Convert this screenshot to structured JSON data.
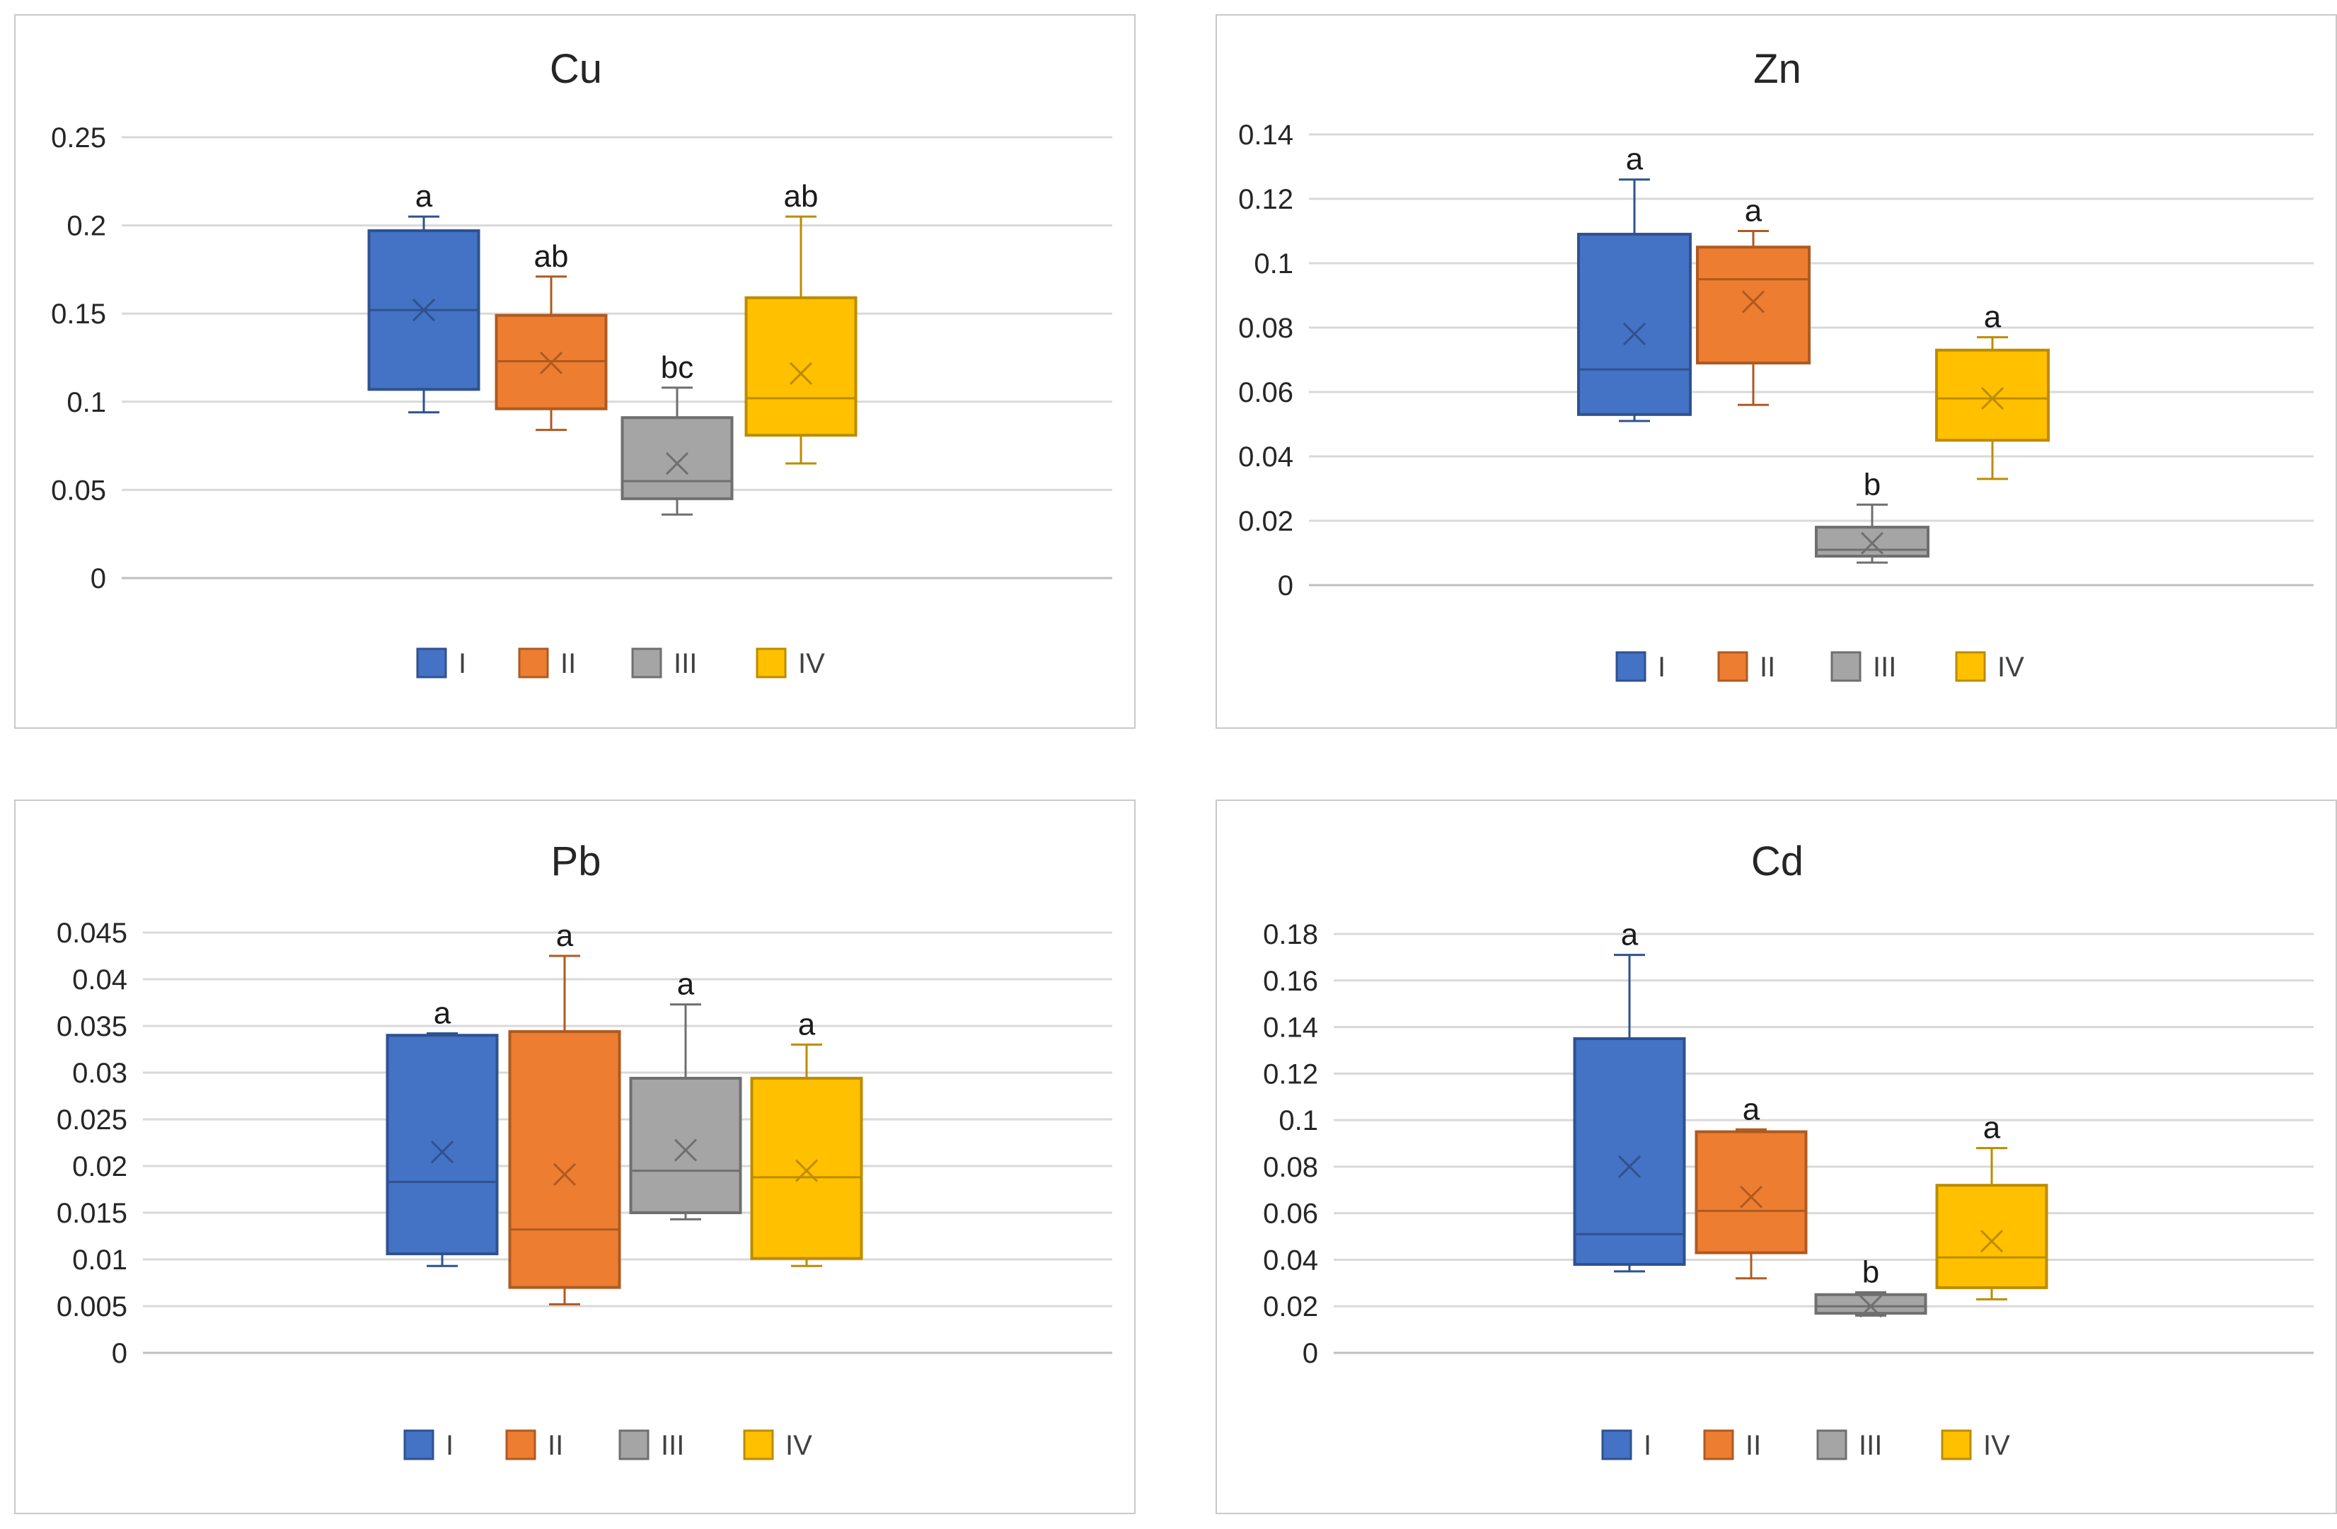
{
  "groups": [
    "I",
    "II",
    "III",
    "IV"
  ],
  "colors": {
    "I": {
      "fill": "#4472C4",
      "stroke": "#2F528F"
    },
    "II": {
      "fill": "#ED7D31",
      "stroke": "#AE5A21"
    },
    "III": {
      "fill": "#A5A5A5",
      "stroke": "#6F6F6F"
    },
    "IV": {
      "fill": "#FFC000",
      "stroke": "#BC8C00"
    }
  },
  "chart_data": [
    {
      "type": "box",
      "title": "Cu",
      "ylim": [
        0,
        0.25
      ],
      "yticks": [
        "0",
        "0.05",
        "0.1",
        "0.15",
        "0.2",
        "0.25"
      ],
      "categories": [
        "I",
        "II",
        "III",
        "IV"
      ],
      "series": [
        {
          "name": "I",
          "min": 0.094,
          "q1": 0.107,
          "median": 0.152,
          "q3": 0.197,
          "max": 0.205,
          "mean": 0.152,
          "label": "a"
        },
        {
          "name": "II",
          "min": 0.084,
          "q1": 0.096,
          "median": 0.123,
          "q3": 0.149,
          "max": 0.171,
          "mean": 0.122,
          "label": "ab"
        },
        {
          "name": "III",
          "min": 0.036,
          "q1": 0.045,
          "median": 0.055,
          "q3": 0.091,
          "max": 0.108,
          "mean": 0.065,
          "label": "bc"
        },
        {
          "name": "IV",
          "min": 0.065,
          "q1": 0.081,
          "median": 0.102,
          "q3": 0.159,
          "max": 0.205,
          "mean": 0.116,
          "label": "ab"
        }
      ],
      "legend": [
        "I",
        "II",
        "III",
        "IV"
      ]
    },
    {
      "type": "box",
      "title": "Zn",
      "ylim": [
        0,
        0.14
      ],
      "yticks": [
        "0",
        "0.02",
        "0.04",
        "0.06",
        "0.08",
        "0.1",
        "0.12",
        "0.14"
      ],
      "categories": [
        "I",
        "II",
        "III",
        "IV"
      ],
      "series": [
        {
          "name": "I",
          "min": 0.051,
          "q1": 0.053,
          "median": 0.067,
          "q3": 0.109,
          "max": 0.126,
          "mean": 0.078,
          "label": "a"
        },
        {
          "name": "II",
          "min": 0.056,
          "q1": 0.069,
          "median": 0.095,
          "q3": 0.105,
          "max": 0.11,
          "mean": 0.088,
          "label": "a"
        },
        {
          "name": "III",
          "min": 0.007,
          "q1": 0.009,
          "median": 0.011,
          "q3": 0.018,
          "max": 0.025,
          "mean": 0.013,
          "label": "b"
        },
        {
          "name": "IV",
          "min": 0.033,
          "q1": 0.045,
          "median": 0.058,
          "q3": 0.073,
          "max": 0.077,
          "mean": 0.058,
          "label": "a"
        }
      ],
      "legend": [
        "I",
        "II",
        "III",
        "IV"
      ]
    },
    {
      "type": "box",
      "title": "Pb",
      "ylim": [
        0,
        0.045
      ],
      "yticks": [
        "0",
        "0.005",
        "0.01",
        "0.015",
        "0.02",
        "0.025",
        "0.03",
        "0.035",
        "0.04",
        "0.045"
      ],
      "categories": [
        "I",
        "II",
        "III",
        "IV"
      ],
      "series": [
        {
          "name": "I",
          "min": 0.0093,
          "q1": 0.0106,
          "median": 0.0183,
          "q3": 0.034,
          "max": 0.0342,
          "mean": 0.0215,
          "label": "a"
        },
        {
          "name": "II",
          "min": 0.0052,
          "q1": 0.007,
          "median": 0.0132,
          "q3": 0.0344,
          "max": 0.0425,
          "mean": 0.0191,
          "label": "a"
        },
        {
          "name": "III",
          "min": 0.0143,
          "q1": 0.015,
          "median": 0.0195,
          "q3": 0.0294,
          "max": 0.0373,
          "mean": 0.0217,
          "label": "a"
        },
        {
          "name": "IV",
          "min": 0.0093,
          "q1": 0.0101,
          "median": 0.0188,
          "q3": 0.0294,
          "max": 0.033,
          "mean": 0.0195,
          "label": "a"
        }
      ],
      "legend": [
        "I",
        "II",
        "III",
        "IV"
      ]
    },
    {
      "type": "box",
      "title": "Cd",
      "ylim": [
        0,
        0.18
      ],
      "yticks": [
        "0",
        "0.02",
        "0.04",
        "0.06",
        "0.08",
        "0.1",
        "0.12",
        "0.14",
        "0.16",
        "0.18"
      ],
      "categories": [
        "I",
        "II",
        "III",
        "IV"
      ],
      "series": [
        {
          "name": "I",
          "min": 0.035,
          "q1": 0.038,
          "median": 0.051,
          "q3": 0.135,
          "max": 0.171,
          "mean": 0.08,
          "label": "a"
        },
        {
          "name": "II",
          "min": 0.032,
          "q1": 0.043,
          "median": 0.061,
          "q3": 0.095,
          "max": 0.096,
          "mean": 0.067,
          "label": "a"
        },
        {
          "name": "III",
          "min": 0.016,
          "q1": 0.017,
          "median": 0.02,
          "q3": 0.025,
          "max": 0.026,
          "mean": 0.02,
          "label": "b"
        },
        {
          "name": "IV",
          "min": 0.023,
          "q1": 0.028,
          "median": 0.041,
          "q3": 0.072,
          "max": 0.088,
          "mean": 0.048,
          "label": "a"
        }
      ],
      "legend": [
        "I",
        "II",
        "III",
        "IV"
      ]
    }
  ]
}
